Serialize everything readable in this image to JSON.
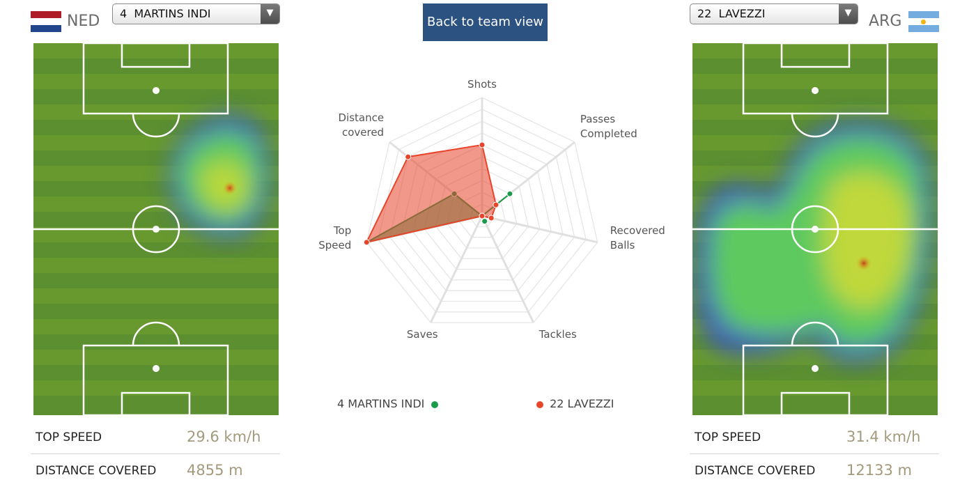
{
  "header": {
    "back_label": "Back to team view"
  },
  "left": {
    "country": "NED",
    "player_select": "4  MARTINS INDI",
    "top_speed_label": "TOP SPEED",
    "top_speed": "29.6 km/h",
    "distance_label": "DISTANCE COVERED",
    "distance": "4855 m",
    "flag_colors": [
      "#ae1c28",
      "#ffffff",
      "#21468b"
    ]
  },
  "right": {
    "country": "ARG",
    "player_select": "22  LAVEZZI",
    "top_speed_label": "TOP SPEED",
    "top_speed": "31.4 km/h",
    "distance_label": "DISTANCE COVERED",
    "distance": "12133 m",
    "flag_colors": [
      "#74acdf",
      "#ffffff",
      "#74acdf"
    ]
  },
  "chart_data": {
    "type": "radar",
    "axes": [
      "Shots",
      "Passes\nCompleted",
      "Recovered\nBalls",
      "Tackles",
      "Saves",
      "Top\nSpeed",
      "Distance\ncovered"
    ],
    "rmax": 10,
    "series": [
      {
        "name": "4  MARTINS INDI",
        "color": "#1a9a4a",
        "values": [
          0,
          3,
          0,
          0.5,
          0,
          10,
          3
        ]
      },
      {
        "name": "22  LAVEZZI",
        "color": "#e8442a",
        "values": [
          6,
          1.5,
          0.8,
          0,
          0,
          10,
          8
        ]
      }
    ]
  },
  "legend": {
    "left": "4   MARTINS INDI",
    "right": "22   LAVEZZI"
  }
}
